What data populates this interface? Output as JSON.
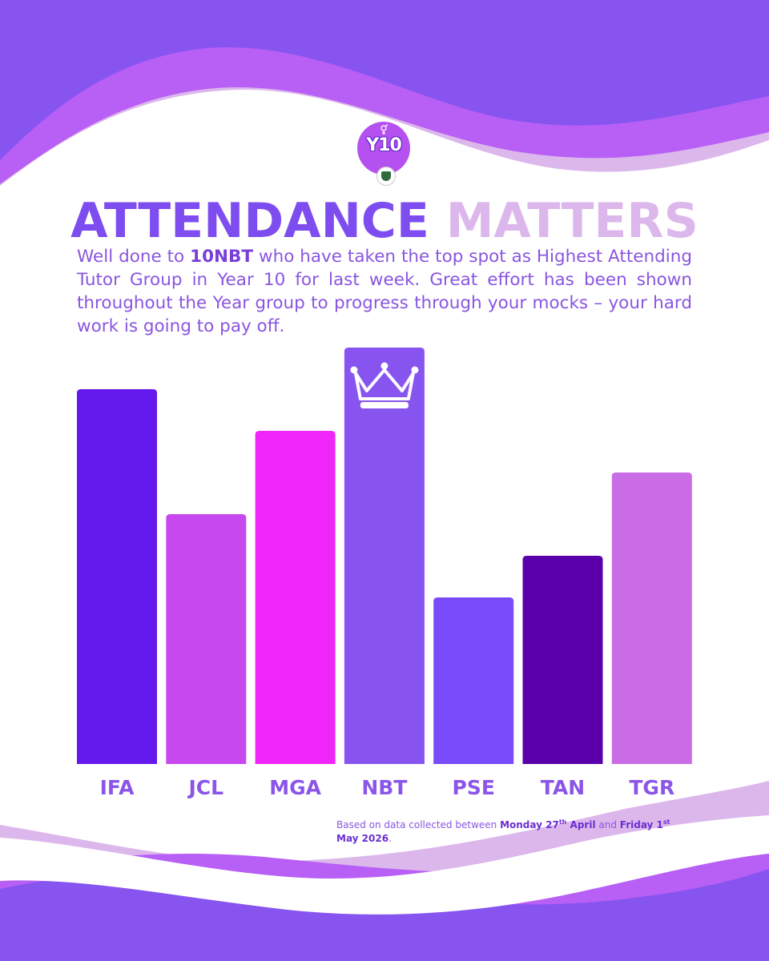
{
  "colors": {
    "wave_dark": "#8754f0",
    "wave_mid": "#b85ff5",
    "wave_light": "#dcb7ec",
    "headline_primary": "#7e4df0",
    "headline_secondary": "#dcb7ec",
    "text": "#8a55e0"
  },
  "badge": {
    "label": "Y10",
    "icon": "gender-symbol-icon"
  },
  "crest": {
    "icon": "school-crest-icon"
  },
  "headline": {
    "part1": "ATTENDANCE",
    "part2": "MATTERS"
  },
  "intro": {
    "before": "Well done to ",
    "highlight": "10NBT",
    "after": " who have taken the top spot as Highest Attending Tutor Group in Year 10 for last week. Great effort has been shown throughout the Year group to progress through your mocks – your hard work is going to pay off."
  },
  "footnote": {
    "prefix": "Based on data collected between ",
    "start": "Monday 27",
    "start_sup": "th",
    "start_month": " April",
    "middle": " and ",
    "end": "Friday 1",
    "end_sup": "st",
    "end_rest": " May 2026",
    "suffix": "."
  },
  "chart_data": {
    "type": "bar",
    "categories": [
      "IFA",
      "JCL",
      "MGA",
      "NBT",
      "PSE",
      "TAN",
      "TGR"
    ],
    "values": [
      90,
      60,
      80,
      100,
      40,
      50,
      70
    ],
    "colors": [
      "#6318ec",
      "#c748ef",
      "#f025f9",
      "#8854ef",
      "#794bfb",
      "#5a00aa",
      "#c96ce5"
    ],
    "ylim": [
      0,
      100
    ],
    "y_unit": "relative bar height (%) — no axis scale printed",
    "grid": false,
    "legend": "none",
    "title": "",
    "xlabel": "",
    "ylabel": "",
    "annotations": [
      {
        "category": "NBT",
        "marker": "crown-icon"
      }
    ]
  }
}
